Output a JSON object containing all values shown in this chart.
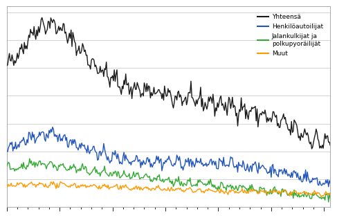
{
  "legend_labels": [
    "Yhteensä",
    "Henkilöautoilijat",
    "Jalankulkijat ja\npolkupyoräilijät",
    "Muut"
  ],
  "colors": [
    "#1a1a1a",
    "#2255bb",
    "#33aa33",
    "#ff9900"
  ],
  "linewidths": [
    1.1,
    1.1,
    1.1,
    1.1
  ],
  "background_color": "#ffffff",
  "grid_color": "#cccccc",
  "ylim": [
    0,
    720
  ],
  "total_keypoints_x": [
    0,
    10,
    48,
    56,
    100,
    120,
    168,
    200,
    240,
    280,
    320,
    356,
    367
  ],
  "total_keypoints_y": [
    500,
    540,
    660,
    650,
    510,
    460,
    410,
    390,
    370,
    340,
    290,
    235,
    230
  ],
  "car_keypoints_x": [
    0,
    10,
    48,
    56,
    100,
    120,
    168,
    200,
    240,
    280,
    320,
    340,
    356,
    367
  ],
  "car_keypoints_y": [
    200,
    220,
    260,
    255,
    200,
    180,
    165,
    160,
    155,
    145,
    120,
    105,
    90,
    85
  ],
  "ped_keypoints_x": [
    0,
    12,
    36,
    56,
    100,
    130,
    168,
    200,
    240,
    280,
    320,
    350,
    367
  ],
  "ped_keypoints_y": [
    145,
    142,
    155,
    148,
    128,
    115,
    100,
    88,
    78,
    62,
    50,
    38,
    35
  ],
  "other_keypoints_x": [
    0,
    12,
    56,
    120,
    168,
    200,
    240,
    280,
    320,
    356,
    367
  ],
  "other_keypoints_y": [
    75,
    78,
    80,
    72,
    66,
    62,
    58,
    55,
    52,
    46,
    45
  ],
  "noise_scales": [
    15,
    10,
    7,
    4
  ],
  "seasonal_scales": [
    18,
    10,
    7,
    4
  ]
}
